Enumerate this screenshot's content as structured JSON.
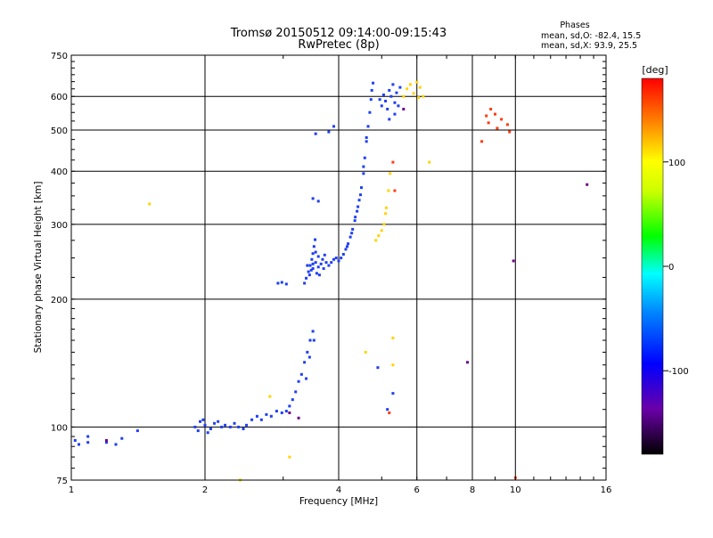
{
  "chart_data": {
    "type": "scatter",
    "title": "Tromsø 20150512 09:14:00-09:15:43",
    "subtitle": "RwPretec (8p)",
    "xlabel": "Frequency [MHz]",
    "ylabel": "Stationary phase Virtual Height [km]",
    "x_scale": "log2",
    "y_scale": "log",
    "xlim": [
      1,
      16
    ],
    "ylim": [
      75,
      750
    ],
    "x_ticks": [
      1,
      2,
      4,
      6,
      8,
      10,
      16
    ],
    "y_ticks": [
      75,
      100,
      200,
      300,
      400,
      500,
      600,
      750
    ],
    "grid": true,
    "phases_box": {
      "heading": "Phases",
      "line_o": "mean, sd,O: -82.4, 15.5",
      "line_x": "mean, sd,X:  93.9, 25.5"
    },
    "colorbar": {
      "label": "[deg]",
      "range": [
        -180,
        180
      ],
      "ticks": [
        "100",
        "0",
        "-100"
      ],
      "tick_values": [
        100,
        0,
        -100
      ],
      "colormap": "rainbow (black-purple-blue-cyan-green-yellow-red)"
    },
    "series": [
      {
        "values": [
          [
            1.02,
            93
          ],
          [
            1.04,
            91
          ],
          [
            1.09,
            92
          ],
          [
            1.09,
            95
          ],
          [
            1.2,
            92
          ],
          [
            1.26,
            91
          ],
          [
            1.3,
            94
          ],
          [
            1.41,
            98
          ],
          [
            1.9,
            100
          ],
          [
            1.93,
            98
          ],
          [
            1.95,
            103
          ],
          [
            1.98,
            104
          ],
          [
            2.0,
            101
          ],
          [
            2.03,
            97
          ],
          [
            2.06,
            99
          ],
          [
            2.1,
            102
          ],
          [
            2.14,
            103
          ],
          [
            2.18,
            100
          ],
          [
            2.22,
            101
          ],
          [
            2.28,
            100
          ],
          [
            2.33,
            102
          ],
          [
            2.38,
            100
          ],
          [
            2.44,
            99
          ],
          [
            2.48,
            101
          ],
          [
            2.55,
            104
          ],
          [
            2.62,
            106
          ],
          [
            2.68,
            104
          ],
          [
            2.75,
            107
          ],
          [
            2.82,
            106
          ],
          [
            2.9,
            109
          ],
          [
            2.98,
            108
          ],
          [
            3.05,
            109
          ],
          [
            3.1,
            112
          ],
          [
            3.15,
            116
          ],
          [
            3.2,
            121
          ],
          [
            3.25,
            128
          ],
          [
            3.3,
            133
          ],
          [
            3.35,
            142
          ],
          [
            3.4,
            150
          ],
          [
            3.45,
            160
          ],
          [
            3.5,
            168
          ],
          [
            3.44,
            146
          ],
          [
            3.38,
            130
          ],
          [
            3.52,
            160
          ],
          [
            2.92,
            218
          ],
          [
            2.98,
            219
          ],
          [
            3.05,
            217
          ],
          [
            3.35,
            218
          ],
          [
            3.38,
            224
          ],
          [
            3.42,
            232
          ],
          [
            3.45,
            240
          ],
          [
            3.48,
            248
          ],
          [
            3.5,
            256
          ],
          [
            3.52,
            266
          ],
          [
            3.54,
            276
          ],
          [
            3.4,
            240
          ],
          [
            3.44,
            228
          ],
          [
            3.5,
            236
          ],
          [
            3.55,
            244
          ],
          [
            3.6,
            238
          ],
          [
            3.65,
            242
          ],
          [
            3.7,
            236
          ],
          [
            3.75,
            244
          ],
          [
            3.8,
            240
          ],
          [
            3.85,
            244
          ],
          [
            3.9,
            248
          ],
          [
            3.95,
            250
          ],
          [
            4.0,
            246
          ],
          [
            4.05,
            250
          ],
          [
            4.1,
            255
          ],
          [
            4.15,
            262
          ],
          [
            4.2,
            270
          ],
          [
            4.25,
            280
          ],
          [
            4.3,
            292
          ],
          [
            4.35,
            306
          ],
          [
            4.4,
            322
          ],
          [
            4.45,
            342
          ],
          [
            4.5,
            366
          ],
          [
            4.55,
            395
          ],
          [
            4.58,
            430
          ],
          [
            4.62,
            470
          ],
          [
            4.66,
            510
          ],
          [
            4.7,
            550
          ],
          [
            4.73,
            590
          ],
          [
            4.75,
            620
          ],
          [
            4.78,
            645
          ],
          [
            4.62,
            480
          ],
          [
            4.55,
            410
          ],
          [
            4.48,
            352
          ],
          [
            4.42,
            330
          ],
          [
            4.36,
            312
          ],
          [
            4.28,
            286
          ],
          [
            4.18,
            266
          ],
          [
            3.6,
            252
          ],
          [
            3.68,
            248
          ],
          [
            3.72,
            254
          ],
          [
            3.55,
            258
          ],
          [
            3.5,
            242
          ],
          [
            3.47,
            234
          ],
          [
            3.57,
            230
          ],
          [
            3.62,
            228
          ],
          [
            4.95,
            590
          ],
          [
            5.0,
            570
          ],
          [
            5.05,
            605
          ],
          [
            5.1,
            585
          ],
          [
            5.15,
            560
          ],
          [
            5.2,
            620
          ],
          [
            5.25,
            600
          ],
          [
            5.3,
            640
          ],
          [
            5.35,
            580
          ],
          [
            5.4,
            612
          ],
          [
            5.45,
            570
          ],
          [
            5.5,
            630
          ],
          [
            5.35,
            545
          ],
          [
            5.2,
            530
          ],
          [
            3.55,
            490
          ],
          [
            3.8,
            495
          ],
          [
            3.9,
            510
          ],
          [
            3.5,
            345
          ],
          [
            3.6,
            340
          ],
          [
            5.15,
            110
          ],
          [
            4.9,
            138
          ],
          [
            5.3,
            120
          ]
        ]
      },
      {
        "values": [
          [
            1.5,
            335
          ],
          [
            4.85,
            275
          ],
          [
            4.92,
            282
          ],
          [
            5.0,
            290
          ],
          [
            5.06,
            300
          ],
          [
            5.1,
            318
          ],
          [
            5.12,
            328
          ],
          [
            5.18,
            360
          ],
          [
            5.22,
            395
          ],
          [
            5.3,
            162
          ],
          [
            5.3,
            140
          ],
          [
            5.6,
            600
          ],
          [
            5.7,
            625
          ],
          [
            5.8,
            640
          ],
          [
            5.9,
            610
          ],
          [
            6.0,
            648
          ],
          [
            6.05,
            596
          ],
          [
            6.1,
            630
          ],
          [
            6.2,
            600
          ],
          [
            2.8,
            118
          ],
          [
            3.1,
            85
          ],
          [
            2.4,
            75
          ],
          [
            4.6,
            150
          ],
          [
            6.4,
            420
          ]
        ]
      },
      {
        "values": [
          [
            8.4,
            470
          ],
          [
            8.6,
            540
          ],
          [
            8.7,
            520
          ],
          [
            8.8,
            560
          ],
          [
            9.0,
            545
          ],
          [
            9.1,
            505
          ],
          [
            9.3,
            530
          ],
          [
            9.6,
            515
          ],
          [
            9.7,
            495
          ],
          [
            5.2,
            108
          ],
          [
            10.0,
            76
          ],
          [
            5.3,
            420
          ],
          [
            5.35,
            360
          ]
        ]
      },
      {
        "values": [
          [
            1.2,
            93
          ],
          [
            3.25,
            105
          ],
          [
            3.1,
            108
          ],
          [
            7.8,
            142
          ],
          [
            9.9,
            246
          ],
          [
            14.5,
            372
          ],
          [
            5.6,
            560
          ]
        ]
      }
    ]
  }
}
